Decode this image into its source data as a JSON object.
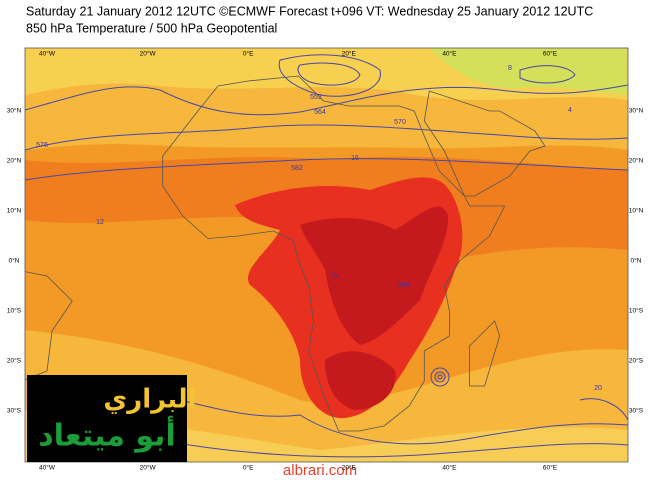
{
  "header": {
    "line1": "Saturday 21 January 2012 12UTC ©ECMWF Forecast t+096 VT: Wednesday 25 January 2012 12UTC",
    "line2": "850 hPa Temperature / 500 hPa Geopotential"
  },
  "map": {
    "longitude_labels": [
      "40°W",
      "20°W",
      "0°E",
      "20°E",
      "40°E",
      "60°E"
    ],
    "latitude_labels": [
      "30°N",
      "20°N",
      "10°N",
      "0°N",
      "10°S",
      "20°S",
      "30°S"
    ],
    "contour_labels": [
      "576",
      "564",
      "552",
      "570",
      "16",
      "12",
      "20",
      "24",
      "588",
      "582",
      "8",
      "4"
    ]
  },
  "logo": {
    "line1": "البراري",
    "line2": "أبو ميتعاد"
  },
  "website": "albrari.com"
}
